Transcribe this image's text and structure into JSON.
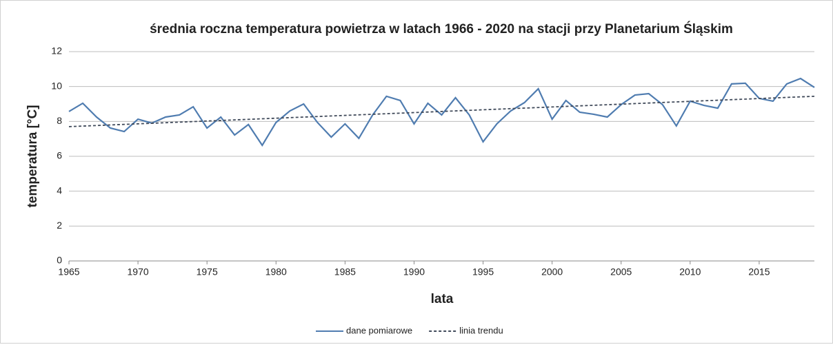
{
  "chart_data": {
    "type": "line",
    "title": "średnia roczna temperatura powietrza w latach 1966 - 2020 na stacji przy Planetarium Śląskim",
    "x_label": "lata",
    "y_label": "temperatura [°C]",
    "x": [
      1965,
      1966,
      1967,
      1968,
      1969,
      1970,
      1971,
      1972,
      1973,
      1974,
      1975,
      1976,
      1977,
      1978,
      1979,
      1980,
      1981,
      1982,
      1983,
      1984,
      1985,
      1986,
      1987,
      1988,
      1989,
      1990,
      1991,
      1992,
      1993,
      1994,
      1995,
      1996,
      1997,
      1998,
      1999,
      2000,
      2001,
      2002,
      2003,
      2004,
      2005,
      2006,
      2007,
      2008,
      2009,
      2010,
      2011,
      2012,
      2013,
      2014,
      2015,
      2016,
      2017,
      2018,
      2019
    ],
    "series": [
      {
        "name": "dane pomiarowe",
        "color": "#4f7cb0",
        "dash": false,
        "values": [
          8.57,
          9.04,
          8.25,
          7.62,
          7.42,
          8.13,
          7.9,
          8.25,
          8.37,
          8.84,
          7.62,
          8.25,
          7.22,
          7.82,
          6.63,
          7.94,
          8.6,
          9.0,
          7.94,
          7.1,
          7.86,
          7.03,
          8.37,
          9.44,
          9.2,
          7.86,
          9.04,
          8.37,
          9.36,
          8.37,
          6.83,
          7.86,
          8.6,
          9.08,
          9.87,
          8.13,
          9.2,
          8.53,
          8.41,
          8.25,
          8.96,
          9.51,
          9.59,
          8.96,
          7.74,
          9.16,
          8.92,
          8.76,
          10.15,
          10.19,
          9.32,
          9.16,
          10.15,
          10.46,
          9.95
        ]
      },
      {
        "name": "linia trendu",
        "color": "#404a5a",
        "dash": true,
        "x": [
          1965,
          2019
        ],
        "values": [
          7.7,
          9.44
        ]
      }
    ],
    "xlim": [
      1965,
      2019
    ],
    "xticks": [
      1965,
      1970,
      1975,
      1980,
      1985,
      1990,
      1995,
      2000,
      2005,
      2010,
      2015
    ],
    "ylim": [
      0,
      12
    ],
    "yticks": [
      0,
      2,
      4,
      6,
      8,
      10,
      12
    ],
    "grid": true,
    "legend": "bottom"
  }
}
